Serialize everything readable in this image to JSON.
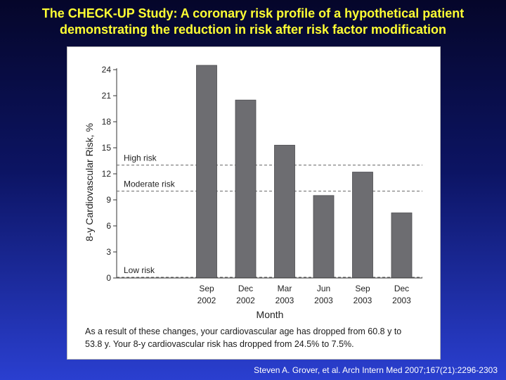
{
  "slide": {
    "title_line1": "The CHECK-UP Study: A coronary risk profile of a hypothetical patient",
    "title_line2": "demonstrating the reduction in risk after risk factor modification",
    "title_color": "#ffff33",
    "caption_line1": "As a result of these changes, your cardiovascular age has dropped from 60.8 y to",
    "caption_line2": "53.8 y. Your 8-y cardiovascular risk has dropped from 24.5% to 7.5%.",
    "citation": "Steven A. Grover, et al. Arch Intern Med 2007;167(21):2296-2303"
  },
  "chart_data": {
    "type": "bar",
    "categories": [
      {
        "line1": "Sep",
        "line2": "2002"
      },
      {
        "line1": "Dec",
        "line2": "2002"
      },
      {
        "line1": "Mar",
        "line2": "2003"
      },
      {
        "line1": "Jun",
        "line2": "2003"
      },
      {
        "line1": "Sep",
        "line2": "2003"
      },
      {
        "line1": "Dec",
        "line2": "2003"
      }
    ],
    "values": [
      24.5,
      20.5,
      15.3,
      9.5,
      12.2,
      7.5
    ],
    "xlabel": "Month",
    "ylabel": "8-y Cardiovascular Risk, %",
    "ylim": [
      0,
      25
    ],
    "yticks": [
      0,
      3,
      6,
      9,
      12,
      15,
      18,
      21,
      24
    ],
    "bar_color": "#6d6d71",
    "reference_lines": [
      {
        "label": "High risk",
        "value": 13
      },
      {
        "label": "Moderate risk",
        "value": 10
      },
      {
        "label": "Low risk",
        "value": 0
      }
    ]
  }
}
